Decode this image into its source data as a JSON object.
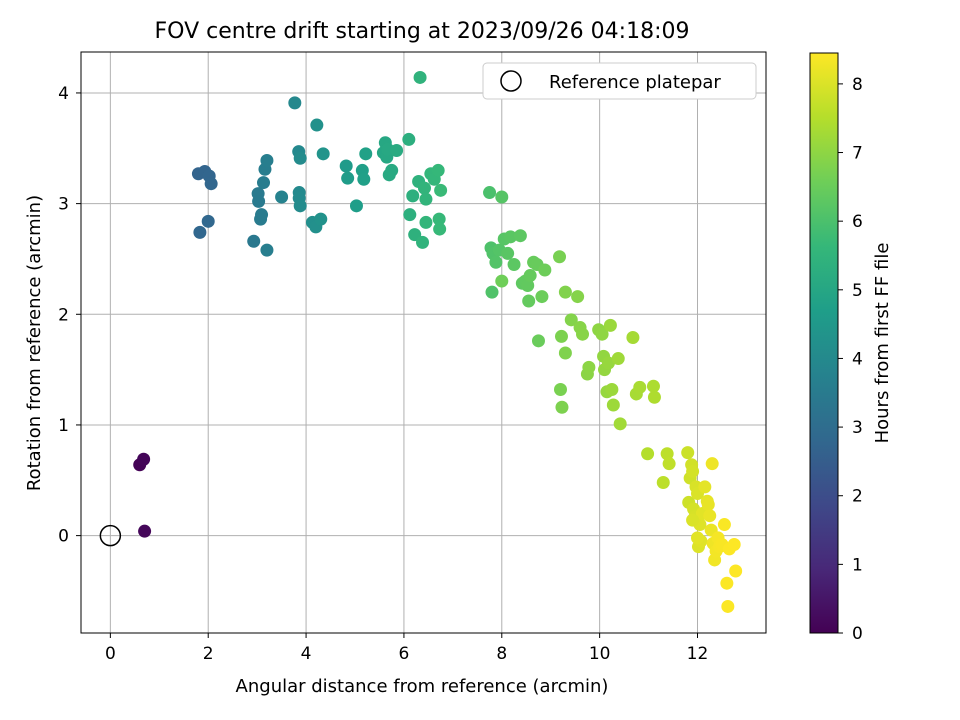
{
  "chart_data": {
    "type": "scatter",
    "title": "FOV centre drift starting at 2023/09/26 04:18:09",
    "xlabel": "Angular distance from reference (arcmin)",
    "ylabel": "Rotation from reference (arcmin)",
    "xlim": [
      -0.6,
      13.4
    ],
    "ylim": [
      -0.88,
      4.37
    ],
    "xticks": [
      0,
      2,
      4,
      6,
      8,
      10,
      12
    ],
    "yticks": [
      0,
      1,
      2,
      3,
      4
    ],
    "grid": true,
    "legend": {
      "position": "top-right",
      "entries": [
        "Reference platepar"
      ]
    },
    "reference_point": {
      "x": 0,
      "y": 0,
      "label": "Reference platepar"
    },
    "colorbar": {
      "label": "Hours from first FF file",
      "colormap": "viridis",
      "range": [
        0,
        8.45
      ],
      "ticks": [
        0,
        1,
        2,
        3,
        4,
        5,
        6,
        7,
        8
      ]
    },
    "colormap_stops": [
      "#440154",
      "#482878",
      "#3e4989",
      "#31688e",
      "#26828e",
      "#1f9e89",
      "#35b779",
      "#6ece58",
      "#b5de2b",
      "#fde725"
    ],
    "points": [
      [
        0.6,
        0.64,
        0.05
      ],
      [
        0.68,
        0.69,
        0.1
      ],
      [
        0.7,
        0.04,
        0.15
      ],
      [
        1.8,
        3.27,
        2.7
      ],
      [
        1.93,
        3.29,
        2.72
      ],
      [
        2.02,
        3.25,
        2.75
      ],
      [
        2.06,
        3.18,
        2.78
      ],
      [
        1.83,
        2.74,
        2.8
      ],
      [
        2.0,
        2.84,
        2.82
      ],
      [
        2.93,
        2.66,
        3.4
      ],
      [
        3.02,
        3.09,
        3.45
      ],
      [
        3.03,
        3.02,
        3.47
      ],
      [
        3.07,
        2.86,
        3.5
      ],
      [
        3.09,
        2.9,
        3.52
      ],
      [
        3.13,
        3.19,
        3.55
      ],
      [
        3.16,
        3.31,
        3.57
      ],
      [
        3.2,
        3.39,
        3.6
      ],
      [
        3.2,
        2.58,
        3.62
      ],
      [
        3.5,
        3.06,
        3.75
      ],
      [
        3.77,
        3.91,
        3.95
      ],
      [
        3.85,
        3.47,
        3.97
      ],
      [
        3.86,
        3.1,
        4.0
      ],
      [
        3.86,
        3.05,
        4.02
      ],
      [
        3.88,
        2.98,
        4.05
      ],
      [
        3.88,
        3.41,
        4.07
      ],
      [
        4.13,
        2.83,
        4.2
      ],
      [
        4.2,
        2.79,
        4.22
      ],
      [
        4.22,
        3.71,
        4.25
      ],
      [
        4.3,
        2.86,
        4.3
      ],
      [
        4.35,
        3.45,
        4.35
      ],
      [
        4.82,
        3.34,
        4.6
      ],
      [
        4.85,
        3.23,
        4.62
      ],
      [
        5.03,
        2.98,
        4.7
      ],
      [
        5.15,
        3.3,
        4.75
      ],
      [
        5.18,
        3.22,
        4.78
      ],
      [
        5.22,
        3.45,
        4.8
      ],
      [
        5.58,
        3.46,
        5.0
      ],
      [
        5.62,
        3.55,
        5.02
      ],
      [
        5.65,
        3.42,
        5.05
      ],
      [
        5.67,
        3.49,
        5.07
      ],
      [
        5.7,
        3.26,
        5.1
      ],
      [
        5.75,
        3.3,
        5.12
      ],
      [
        5.85,
        3.48,
        5.15
      ],
      [
        6.1,
        3.58,
        5.3
      ],
      [
        6.12,
        2.9,
        5.32
      ],
      [
        6.18,
        3.07,
        5.35
      ],
      [
        6.22,
        2.72,
        5.37
      ],
      [
        6.3,
        3.2,
        5.4
      ],
      [
        6.33,
        4.14,
        5.45
      ],
      [
        6.38,
        2.65,
        5.47
      ],
      [
        6.42,
        3.14,
        5.5
      ],
      [
        6.45,
        3.04,
        5.52
      ],
      [
        6.45,
        2.83,
        5.55
      ],
      [
        6.55,
        3.27,
        5.57
      ],
      [
        6.62,
        3.22,
        5.6
      ],
      [
        6.7,
        3.3,
        5.62
      ],
      [
        6.72,
        2.86,
        5.65
      ],
      [
        6.73,
        2.77,
        5.67
      ],
      [
        6.75,
        3.12,
        5.7
      ],
      [
        7.75,
        3.1,
        6.0
      ],
      [
        7.78,
        2.6,
        6.05
      ],
      [
        7.8,
        2.2,
        6.08
      ],
      [
        7.82,
        2.55,
        6.1
      ],
      [
        7.88,
        2.47,
        6.12
      ],
      [
        7.95,
        2.58,
        6.15
      ],
      [
        8.0,
        3.06,
        6.17
      ],
      [
        8.05,
        2.68,
        6.2
      ],
      [
        8.12,
        2.55,
        6.22
      ],
      [
        8.18,
        2.7,
        6.25
      ],
      [
        8.25,
        2.45,
        6.27
      ],
      [
        8.38,
        2.71,
        6.3
      ],
      [
        8.42,
        2.28,
        6.32
      ],
      [
        8.48,
        2.3,
        6.35
      ],
      [
        8.53,
        2.26,
        6.37
      ],
      [
        8.55,
        2.12,
        6.4
      ],
      [
        8.58,
        2.35,
        6.42
      ],
      [
        8.65,
        2.47,
        6.45
      ],
      [
        8.72,
        2.45,
        6.47
      ],
      [
        8.75,
        1.76,
        6.5
      ],
      [
        8.82,
        2.16,
        6.52
      ],
      [
        8.88,
        2.4,
        6.55
      ],
      [
        8.0,
        2.3,
        6.57
      ],
      [
        9.18,
        2.52,
        6.7
      ],
      [
        9.2,
        1.32,
        6.72
      ],
      [
        9.22,
        1.8,
        6.75
      ],
      [
        9.23,
        1.16,
        6.77
      ],
      [
        9.3,
        1.65,
        6.8
      ],
      [
        9.3,
        2.2,
        6.82
      ],
      [
        9.42,
        1.95,
        6.85
      ],
      [
        9.55,
        2.16,
        6.87
      ],
      [
        9.6,
        1.88,
        6.9
      ],
      [
        9.65,
        1.82,
        6.92
      ],
      [
        9.75,
        1.46,
        6.95
      ],
      [
        9.78,
        1.52,
        6.97
      ],
      [
        9.98,
        1.86,
        7.0
      ],
      [
        10.05,
        1.82,
        7.02
      ],
      [
        10.08,
        1.62,
        7.05
      ],
      [
        10.1,
        1.5,
        7.07
      ],
      [
        10.15,
        1.3,
        7.1
      ],
      [
        10.18,
        1.56,
        7.12
      ],
      [
        10.22,
        1.9,
        7.15
      ],
      [
        10.25,
        1.32,
        7.17
      ],
      [
        10.28,
        1.18,
        7.2
      ],
      [
        10.38,
        1.6,
        7.22
      ],
      [
        10.42,
        1.01,
        7.25
      ],
      [
        10.68,
        1.79,
        7.3
      ],
      [
        10.75,
        1.28,
        7.32
      ],
      [
        10.82,
        1.34,
        7.35
      ],
      [
        11.1,
        1.35,
        7.4
      ],
      [
        11.12,
        1.25,
        7.42
      ],
      [
        10.98,
        0.74,
        7.5
      ],
      [
        11.3,
        0.48,
        7.6
      ],
      [
        11.38,
        0.74,
        7.62
      ],
      [
        11.42,
        0.65,
        7.65
      ],
      [
        11.8,
        0.75,
        7.8
      ],
      [
        11.82,
        0.3,
        7.82
      ],
      [
        11.85,
        0.52,
        7.85
      ],
      [
        11.88,
        0.64,
        7.87
      ],
      [
        11.9,
        0.58,
        7.9
      ],
      [
        11.92,
        0.24,
        7.92
      ],
      [
        11.95,
        0.17,
        7.95
      ],
      [
        11.97,
        0.44,
        7.97
      ],
      [
        12.0,
        0.38,
        8.0
      ],
      [
        12.02,
        -0.1,
        8.02
      ],
      [
        12.05,
        0.1,
        8.05
      ],
      [
        12.07,
        -0.05,
        8.07
      ],
      [
        12.1,
        0.2,
        8.1
      ],
      [
        12.15,
        0.44,
        8.12
      ],
      [
        12.2,
        0.31,
        8.15
      ],
      [
        12.22,
        0.28,
        8.17
      ],
      [
        12.25,
        0.18,
        8.2
      ],
      [
        12.28,
        0.05,
        8.22
      ],
      [
        12.3,
        0.65,
        8.25
      ],
      [
        12.32,
        -0.07,
        8.27
      ],
      [
        12.35,
        -0.22,
        8.3
      ],
      [
        12.38,
        -0.14,
        8.32
      ],
      [
        12.42,
        -0.02,
        8.34
      ],
      [
        12.45,
        -0.1,
        8.36
      ],
      [
        12.5,
        -0.08,
        8.38
      ],
      [
        12.55,
        0.1,
        8.4
      ],
      [
        12.6,
        -0.43,
        8.42
      ],
      [
        12.62,
        -0.64,
        8.43
      ],
      [
        12.65,
        -0.12,
        8.44
      ],
      [
        12.75,
        -0.08,
        8.45
      ],
      [
        12.78,
        -0.32,
        8.45
      ],
      [
        11.9,
        0.14,
        8.0
      ],
      [
        12.0,
        -0.02,
        8.1
      ]
    ]
  }
}
